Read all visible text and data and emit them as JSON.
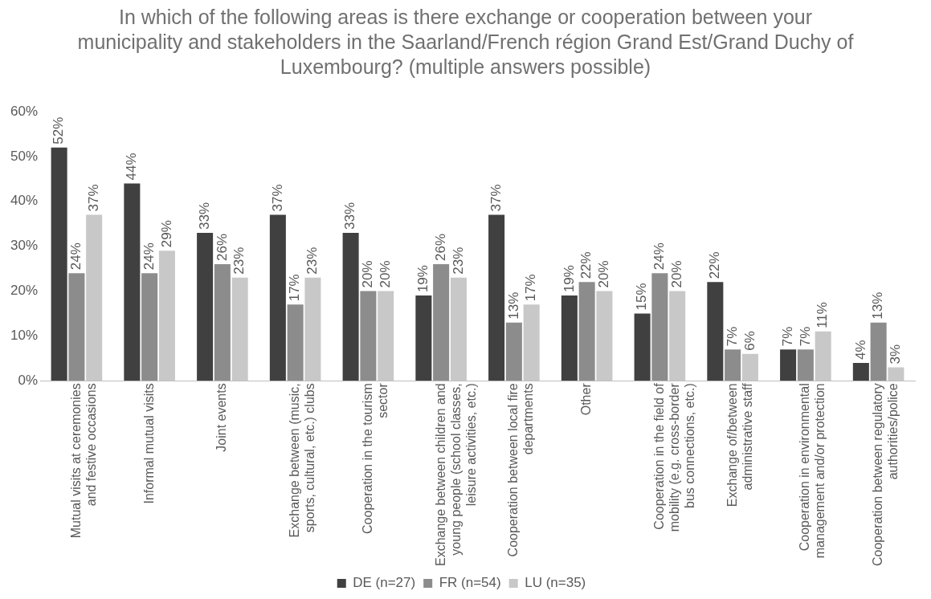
{
  "chart_data": {
    "type": "bar",
    "title": "In which of the following areas is there exchange or cooperation between your municipality and stakeholders in the Saarland/French région Grand Est/Grand Duchy of Luxembourg? (multiple answers possible)",
    "categories": [
      "Mutual visits at ceremonies and festive occasions",
      "Informal mutual visits",
      "Joint events",
      "Exchange between (music, sports, cultural, etc.) clubs",
      "Cooperation in the tourism sector",
      "Exchange between children and young people (school classes, leisure activities, etc.)",
      "Cooperation between local fire departments",
      "Other",
      "Cooperation in the field of mobility (e.g. cross-border bus connections, etc.)",
      "Exchange of/between administrative staff",
      "Cooperation in environmental management and/or protection",
      "Cooperation between regulatory authorities/police"
    ],
    "series": [
      {
        "name": "DE (n=27)",
        "color": "#404040",
        "values": [
          52,
          44,
          33,
          37,
          33,
          19,
          37,
          19,
          15,
          22,
          7,
          4
        ],
        "value_labels": [
          "52%",
          "44%",
          "33%",
          "37%",
          "33%",
          "19%",
          "37%",
          "19%",
          "15%",
          "22%",
          "7%",
          "4%"
        ]
      },
      {
        "name": "FR (n=54)",
        "color": "#8c8c8c",
        "values": [
          24,
          24,
          26,
          17,
          20,
          26,
          13,
          22,
          24,
          7,
          7,
          13
        ],
        "value_labels": [
          "24%",
          "24%",
          "26%",
          "17%",
          "20%",
          "26%",
          "13%",
          "22%",
          "24%",
          "7%",
          "7%",
          "13%"
        ]
      },
      {
        "name": "LU (n=35)",
        "color": "#c8c8c8",
        "values": [
          37,
          29,
          23,
          23,
          20,
          23,
          17,
          20,
          20,
          6,
          11,
          3
        ],
        "value_labels": [
          "37%",
          "29%",
          "23%",
          "23%",
          "20%",
          "23%",
          "17%",
          "20%",
          "20%",
          "6%",
          "11%",
          "3%"
        ]
      }
    ],
    "ylim": [
      0,
      60
    ],
    "yticks": [
      {
        "value": 0,
        "label": "0%"
      },
      {
        "value": 10,
        "label": "10%"
      },
      {
        "value": 20,
        "label": "20%"
      },
      {
        "value": 30,
        "label": "30%"
      },
      {
        "value": 40,
        "label": "40%"
      },
      {
        "value": 50,
        "label": "50%"
      },
      {
        "value": 60,
        "label": "60%"
      }
    ],
    "grid": false,
    "legend": "bottom"
  }
}
